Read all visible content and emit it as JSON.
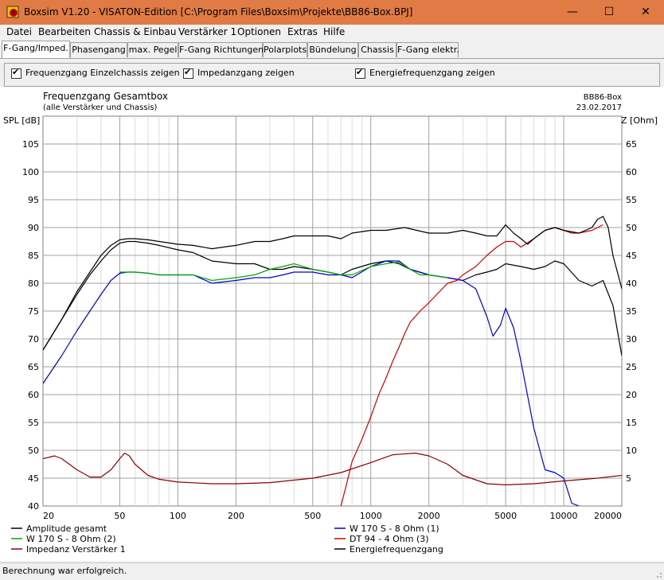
{
  "window": {
    "title": "Boxsim V1.20 - VISATON-Edition [C:\\Program Files\\Boxsim\\Projekte\\BB86-Box.BPJ]",
    "minimize_glyph": "—",
    "maximize_glyph": "☐",
    "close_glyph": "✕"
  },
  "menu": [
    "Datei",
    "Bearbeiten",
    "Chassis & Einbau",
    "Verstärker 1",
    "Optionen",
    "Extras",
    "Hilfe"
  ],
  "tabs": [
    "F-Gang/Imped.",
    "Phasengang",
    "max. Pegel",
    "F-Gang Richtungen",
    "Polarplots",
    "Bündelung",
    "Chassis",
    "F-Gang elektr."
  ],
  "active_tab": 0,
  "options": [
    {
      "label": "Frequenzgang Einzelchassis zeigen",
      "checked": true
    },
    {
      "label": "Impedanzgang zeigen",
      "checked": true
    },
    {
      "label": "Energiefrequenzgang zeigen",
      "checked": true
    }
  ],
  "checkmark_glyph": "✔",
  "status": "Berechnung war erfolgreich.",
  "chart_data": {
    "type": "line",
    "title": "Frequenzgang Gesamtbox",
    "subtitle": "(alle Verstärker und Chassis)",
    "project": "BB86-Box",
    "date": "23.02.2017",
    "ylabel": "SPL [dB]",
    "y2label": "Z [Ohm]",
    "xscale": "log",
    "xlim": [
      20,
      20000
    ],
    "ylim": [
      40,
      110
    ],
    "y2lim": [
      0,
      70
    ],
    "x_ticks": [
      "20",
      "50",
      "100",
      "200",
      "500",
      "1000",
      "2000",
      "5000",
      "10000",
      "20000"
    ],
    "y_ticks": [
      "40",
      "45",
      "50",
      "55",
      "60",
      "65",
      "70",
      "75",
      "80",
      "85",
      "90",
      "95",
      "100",
      "105"
    ],
    "y2_ticks": [
      "5",
      "10",
      "15",
      "20",
      "25",
      "30",
      "35",
      "40",
      "45",
      "50",
      "55",
      "60",
      "65"
    ],
    "grid": true,
    "legend_position": "bottom",
    "series": [
      {
        "name": "Amplitude gesamt",
        "color": "#000000",
        "axis": "left",
        "x": [
          20,
          25,
          30,
          35,
          40,
          45,
          50,
          55,
          60,
          70,
          80,
          100,
          120,
          150,
          200,
          250,
          300,
          350,
          400,
          500,
          600,
          700,
          800,
          1000,
          1200,
          1400,
          1600,
          2000,
          2500,
          3000,
          3500,
          4000,
          4500,
          5000,
          6000,
          7000,
          8000,
          9000,
          10000,
          12000,
          14000,
          16000,
          18000,
          20000
        ],
        "y": [
          68,
          73.5,
          78,
          81.5,
          84,
          86,
          87.2,
          87.5,
          87.5,
          87.2,
          86.8,
          86,
          85.5,
          84,
          83.5,
          83.5,
          82.5,
          82.5,
          83,
          82.5,
          82,
          81.5,
          82.5,
          83.5,
          84,
          83.5,
          82.5,
          81.5,
          81,
          80.5,
          81.5,
          82,
          82.5,
          83.5,
          83,
          82.5,
          83,
          84,
          83.5,
          80.5,
          79.5,
          80.5,
          76,
          67
        ]
      },
      {
        "name": "W 170 S - 8 Ohm (1)",
        "color": "#0000cc",
        "axis": "left",
        "x": [
          20,
          25,
          30,
          35,
          40,
          45,
          50,
          55,
          60,
          70,
          80,
          100,
          120,
          150,
          200,
          250,
          300,
          350,
          400,
          500,
          600,
          700,
          800,
          1000,
          1200,
          1400,
          1600,
          2000,
          2500,
          3000,
          3500,
          4000,
          4300,
          4700,
          5000,
          5500,
          6000,
          7000,
          8000,
          9000,
          10000,
          11000,
          12000
        ],
        "y": [
          62,
          67,
          71.5,
          75,
          78,
          80.5,
          81.8,
          82,
          82,
          81.8,
          81.5,
          81.5,
          81.5,
          80,
          80.5,
          81,
          81,
          81.5,
          82,
          82,
          81.5,
          81.5,
          81,
          83,
          84,
          84,
          82.5,
          81.5,
          81,
          80.5,
          79,
          74,
          70.5,
          72.5,
          75.5,
          72,
          66,
          54,
          46.5,
          46,
          45,
          40.5,
          40
        ]
      },
      {
        "name": "W 170 S - 8 Ohm (2)",
        "color": "#00aa00",
        "axis": "left",
        "x": [
          50,
          60,
          70,
          80,
          100,
          120,
          150,
          200,
          250,
          300,
          350,
          400,
          500,
          600,
          700,
          800,
          1000,
          1200,
          1400,
          1600,
          1800,
          2000,
          2500
        ],
        "y": [
          82,
          82,
          81.8,
          81.5,
          81.5,
          81.5,
          80.5,
          81,
          81.5,
          82.5,
          83,
          83.5,
          82.5,
          82,
          81.5,
          81.5,
          83,
          83.5,
          83.8,
          82.5,
          81.5,
          81.5,
          81
        ]
      },
      {
        "name": "DT 94 - 4 Ohm (3)",
        "color": "#cc0000",
        "axis": "left",
        "x": [
          700,
          750,
          800,
          900,
          1000,
          1100,
          1200,
          1300,
          1400,
          1500,
          1600,
          1800,
          2000,
          2200,
          2500,
          2800,
          3000,
          3500,
          4000,
          4500,
          5000,
          5500,
          6000,
          7000,
          8000,
          9000,
          10000,
          11000,
          12000,
          14000,
          16000
        ],
        "y": [
          40,
          44,
          48,
          52,
          56,
          60,
          63,
          66,
          68.5,
          71,
          73,
          75,
          76.5,
          78,
          80,
          80.5,
          81.5,
          83,
          85,
          86.5,
          87.5,
          87.5,
          86.5,
          88,
          89.5,
          90,
          89.5,
          89,
          89,
          89.5,
          90.5
        ]
      },
      {
        "name": "Impedanz Verstärker 1",
        "color": "#8b0000",
        "axis": "right",
        "x": [
          20,
          23,
          25,
          30,
          35,
          40,
          45,
          50,
          53,
          56,
          60,
          70,
          80,
          100,
          150,
          200,
          300,
          500,
          700,
          1000,
          1300,
          1700,
          2000,
          2500,
          3000,
          4000,
          5000,
          7000,
          10000,
          15000,
          20000
        ],
        "y": [
          8.5,
          9,
          8.5,
          6.5,
          5.2,
          5.2,
          6.5,
          8.5,
          9.5,
          9,
          7.5,
          5.5,
          4.8,
          4.3,
          4,
          4,
          4.2,
          5,
          6,
          7.8,
          9.2,
          9.5,
          9,
          7.5,
          5.5,
          4,
          3.8,
          4,
          4.5,
          5,
          5.5
        ]
      },
      {
        "name": "Energiefrequenzgang",
        "color": "#000000",
        "axis": "left",
        "x": [
          20,
          25,
          30,
          35,
          40,
          45,
          50,
          55,
          60,
          70,
          80,
          100,
          120,
          150,
          200,
          250,
          300,
          350,
          400,
          500,
          600,
          700,
          800,
          1000,
          1200,
          1500,
          2000,
          2500,
          3000,
          3500,
          4000,
          4500,
          5000,
          5500,
          6000,
          6500,
          7000,
          8000,
          9000,
          10000,
          12000,
          14000,
          15000,
          16000,
          17000,
          18000,
          20000
        ],
        "y": [
          68,
          73.5,
          78.5,
          82,
          85,
          86.8,
          87.8,
          88,
          88,
          87.8,
          87.5,
          87,
          86.8,
          86.2,
          86.8,
          87.5,
          87.5,
          88,
          88.5,
          88.5,
          88.5,
          88,
          89,
          89.5,
          89.5,
          90,
          89,
          89,
          89.5,
          89,
          88.5,
          88.5,
          90.5,
          89,
          88,
          87,
          88,
          89.5,
          90,
          89.5,
          89,
          90,
          91.5,
          92,
          90,
          85,
          79
        ]
      }
    ]
  }
}
